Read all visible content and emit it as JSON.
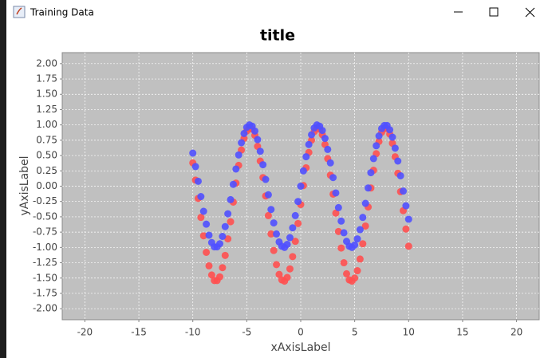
{
  "window": {
    "title": "Training Data"
  },
  "chart_data": {
    "type": "scatter",
    "title": "title",
    "x_label": "xAxisLabel",
    "y_label": "yAxisLabel",
    "x": [
      -10,
      -9.75,
      -9.5,
      -9.25,
      -9,
      -8.75,
      -8.5,
      -8.25,
      -8,
      -7.75,
      -7.5,
      -7.25,
      -7,
      -6.75,
      -6.5,
      -6.25,
      -6,
      -5.75,
      -5.5,
      -5.25,
      -5,
      -4.75,
      -4.5,
      -4.25,
      -4,
      -3.75,
      -3.5,
      -3.25,
      -3,
      -2.75,
      -2.5,
      -2.25,
      -2,
      -1.75,
      -1.5,
      -1.25,
      -1,
      -0.75,
      -0.5,
      -0.25,
      0,
      0.25,
      0.5,
      0.75,
      1,
      1.25,
      1.5,
      1.75,
      2,
      2.25,
      2.5,
      2.75,
      3,
      3.25,
      3.5,
      3.75,
      4,
      4.25,
      4.5,
      4.75,
      5,
      5.25,
      5.5,
      5.75,
      6,
      6.25,
      6.5,
      6.75,
      7,
      7.25,
      7.5,
      7.75,
      8,
      8.25,
      8.5,
      8.75,
      9,
      9.25,
      9.5,
      9.75,
      10
    ],
    "series": [
      {
        "color": "#ff5050",
        "values": [
          0.38,
          0.1,
          -0.2,
          -0.51,
          -0.81,
          -1.08,
          -1.3,
          -1.45,
          -1.54,
          -1.54,
          -1.48,
          -1.33,
          -1.13,
          -0.86,
          -0.58,
          -0.26,
          0.05,
          0.34,
          0.59,
          0.78,
          0.9,
          0.95,
          0.93,
          0.83,
          0.65,
          0.41,
          0.14,
          -0.16,
          -0.48,
          -0.78,
          -1.05,
          -1.28,
          -1.44,
          -1.53,
          -1.55,
          -1.49,
          -1.35,
          -1.15,
          -0.9,
          -0.61,
          -0.3,
          0.01,
          0.3,
          0.55,
          0.75,
          0.89,
          0.95,
          0.93,
          0.84,
          0.68,
          0.45,
          0.18,
          -0.13,
          -0.44,
          -0.74,
          -1.01,
          -1.25,
          -1.43,
          -1.53,
          -1.55,
          -1.5,
          -1.38,
          -1.19,
          -0.94,
          -0.65,
          -0.34,
          -0.03,
          0.26,
          0.53,
          0.73,
          0.88,
          0.94,
          0.94,
          0.85,
          0.7,
          0.48,
          0.21,
          -0.09,
          -0.4,
          -0.7,
          -0.98
        ]
      },
      {
        "color": "#5050ff",
        "values": [
          0.54,
          0.32,
          0.08,
          -0.17,
          -0.41,
          -0.62,
          -0.8,
          -0.92,
          -0.99,
          -0.99,
          -0.94,
          -0.82,
          -0.66,
          -0.45,
          -0.22,
          0.03,
          0.28,
          0.51,
          0.71,
          0.86,
          0.96,
          1.0,
          0.98,
          0.9,
          0.76,
          0.57,
          0.35,
          0.11,
          -0.14,
          -0.38,
          -0.6,
          -0.78,
          -0.91,
          -0.98,
          -1.0,
          -0.95,
          -0.84,
          -0.68,
          -0.48,
          -0.25,
          0,
          0.25,
          0.48,
          0.68,
          0.84,
          0.95,
          1.0,
          0.98,
          0.91,
          0.78,
          0.6,
          0.38,
          0.14,
          -0.11,
          -0.35,
          -0.57,
          -0.76,
          -0.9,
          -0.98,
          -1.0,
          -0.96,
          -0.86,
          -0.71,
          -0.51,
          -0.28,
          -0.03,
          0.22,
          0.45,
          0.66,
          0.82,
          0.94,
          0.99,
          0.99,
          0.92,
          0.8,
          0.62,
          0.41,
          0.17,
          -0.08,
          -0.32,
          -0.54
        ]
      }
    ],
    "xlim": [
      -22.1,
      22.1
    ],
    "ylim": [
      -2.18,
      2.18
    ],
    "xticks": [
      -20,
      -15,
      -10,
      -5,
      0,
      5,
      10,
      15,
      20
    ],
    "yticks": [
      {
        "value": 2,
        "label": "2.00"
      },
      {
        "value": 1.75,
        "label": "1.75"
      },
      {
        "value": 1.5,
        "label": "1.50"
      },
      {
        "value": 1.25,
        "label": "1.25"
      },
      {
        "value": 1,
        "label": "1.00"
      },
      {
        "value": 0.75,
        "label": "0.75"
      },
      {
        "value": 0.5,
        "label": "0.50"
      },
      {
        "value": 0.25,
        "label": "0.25"
      },
      {
        "value": 0,
        "label": "0.00"
      },
      {
        "value": -0.25,
        "label": "-0.25"
      },
      {
        "value": -0.5,
        "label": "-0.50"
      },
      {
        "value": -0.75,
        "label": "-0.75"
      },
      {
        "value": -1,
        "label": "-1.00"
      },
      {
        "value": -1.25,
        "label": "-1.25"
      },
      {
        "value": -1.5,
        "label": "-1.50"
      },
      {
        "value": -1.75,
        "label": "-1.75"
      },
      {
        "value": -2,
        "label": "-2.00"
      }
    ],
    "grid": true,
    "background": "#c0c0c0"
  }
}
